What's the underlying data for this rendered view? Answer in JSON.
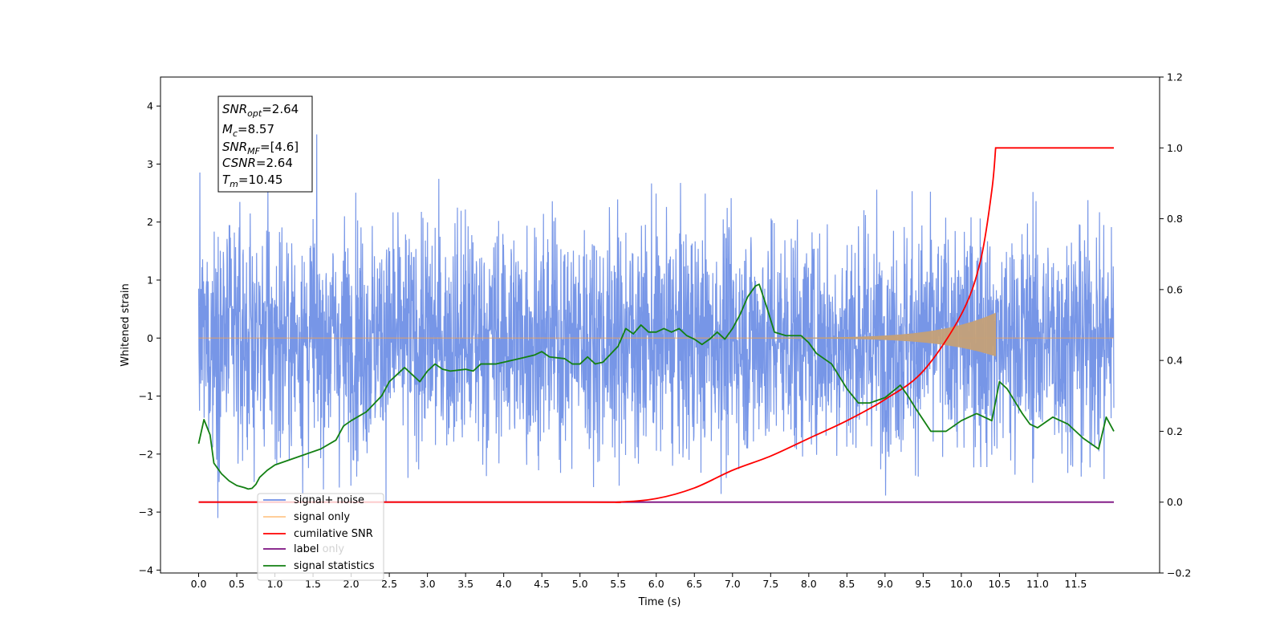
{
  "chart_data": {
    "type": "line",
    "xlabel": "Time (s)",
    "ylabel": "Whitened strain",
    "xlim": [
      -0.5,
      12.6
    ],
    "ylim": [
      -4.05,
      4.5
    ],
    "ylim_right": [
      -0.2,
      1.2
    ],
    "x_ticks": [
      "0.0",
      "0.5",
      "1.0",
      "1.5",
      "2.0",
      "2.5",
      "3.0",
      "3.5",
      "4.0",
      "4.5",
      "5.0",
      "5.5",
      "6.0",
      "6.5",
      "7.0",
      "7.5",
      "8.0",
      "8.5",
      "9.0",
      "9.5",
      "10.0",
      "10.5",
      "11.0",
      "11.5"
    ],
    "y_ticks": [
      "4",
      "3",
      "2",
      "1",
      "0",
      "−1",
      "−2",
      "−3",
      "−4"
    ],
    "y_ticks_right": [
      "1.2",
      "1.0",
      "0.8",
      "0.6",
      "0.4",
      "0.2",
      "0.0",
      "−0.2"
    ],
    "grid": false,
    "legend_position": "lower-left",
    "annotation": {
      "snr_opt_base": "SNR",
      "snr_opt_sub": "opt",
      "snr_opt_value": "=2.64",
      "mc_base": "M",
      "mc_sub": "c",
      "mc_value": "=8.57",
      "snr_mf_base": "SNR",
      "snr_mf_sub": "MF",
      "snr_mf_value": "=[4.6]",
      "csnr_base": "CSNR",
      "csnr_value": "=2.64",
      "tm_base": "T",
      "tm_sub": "m",
      "tm_value": "=10.45"
    },
    "series": [
      {
        "name": "signal+ noise",
        "color": "#7090e6",
        "axis": "left",
        "x_range": [
          0.0,
          12.0
        ],
        "y_range_observed": [
          -3.7,
          4.0
        ],
        "noise_std": 1.0
      },
      {
        "name": "signal only",
        "color": "#ffa040",
        "chirp_color": "#c4a078",
        "axis": "left",
        "x_range": [
          0.0,
          12.0
        ],
        "chirp_start": 7.5,
        "chirp_end": 10.45,
        "chirp_peak_amplitude": 0.35
      },
      {
        "name": "cumilative SNR",
        "color": "#ff0000",
        "axis": "right",
        "points": [
          [
            0.0,
            0.0
          ],
          [
            5.0,
            0.0
          ],
          [
            5.5,
            0.0
          ],
          [
            6.0,
            0.01
          ],
          [
            6.5,
            0.04
          ],
          [
            7.0,
            0.09
          ],
          [
            7.5,
            0.13
          ],
          [
            8.0,
            0.18
          ],
          [
            8.5,
            0.23
          ],
          [
            9.0,
            0.29
          ],
          [
            9.5,
            0.37
          ],
          [
            10.0,
            0.53
          ],
          [
            10.25,
            0.68
          ],
          [
            10.4,
            0.88
          ],
          [
            10.45,
            1.0
          ],
          [
            12.0,
            1.0
          ]
        ]
      },
      {
        "name": "label",
        "color": "#7b0f80",
        "axis": "right",
        "points": [
          [
            0.0,
            0.0
          ],
          [
            12.0,
            0.0
          ]
        ]
      },
      {
        "name": "label only",
        "color": "#7b0f80",
        "axis": "right",
        "points": []
      },
      {
        "name": "signal statistics",
        "color": "#138013",
        "axis": "right",
        "points": [
          [
            0.0,
            0.165
          ],
          [
            0.07,
            0.233
          ],
          [
            0.15,
            0.19
          ],
          [
            0.2,
            0.11
          ],
          [
            0.3,
            0.08
          ],
          [
            0.4,
            0.06
          ],
          [
            0.5,
            0.047
          ],
          [
            0.6,
            0.041
          ],
          [
            0.65,
            0.037
          ],
          [
            0.7,
            0.039
          ],
          [
            0.75,
            0.05
          ],
          [
            0.8,
            0.07
          ],
          [
            0.9,
            0.09
          ],
          [
            1.0,
            0.105
          ],
          [
            1.2,
            0.12
          ],
          [
            1.4,
            0.135
          ],
          [
            1.6,
            0.15
          ],
          [
            1.8,
            0.175
          ],
          [
            1.9,
            0.215
          ],
          [
            2.0,
            0.23
          ],
          [
            2.2,
            0.255
          ],
          [
            2.4,
            0.3
          ],
          [
            2.5,
            0.34
          ],
          [
            2.6,
            0.36
          ],
          [
            2.7,
            0.38
          ],
          [
            2.8,
            0.36
          ],
          [
            2.9,
            0.34
          ],
          [
            3.0,
            0.37
          ],
          [
            3.1,
            0.39
          ],
          [
            3.2,
            0.375
          ],
          [
            3.3,
            0.37
          ],
          [
            3.5,
            0.375
          ],
          [
            3.6,
            0.37
          ],
          [
            3.7,
            0.39
          ],
          [
            3.9,
            0.39
          ],
          [
            4.0,
            0.395
          ],
          [
            4.2,
            0.405
          ],
          [
            4.4,
            0.415
          ],
          [
            4.5,
            0.425
          ],
          [
            4.6,
            0.41
          ],
          [
            4.8,
            0.405
          ],
          [
            4.9,
            0.39
          ],
          [
            5.0,
            0.39
          ],
          [
            5.1,
            0.41
          ],
          [
            5.2,
            0.39
          ],
          [
            5.3,
            0.395
          ],
          [
            5.5,
            0.44
          ],
          [
            5.6,
            0.49
          ],
          [
            5.7,
            0.475
          ],
          [
            5.8,
            0.5
          ],
          [
            5.9,
            0.48
          ],
          [
            6.0,
            0.48
          ],
          [
            6.1,
            0.49
          ],
          [
            6.2,
            0.48
          ],
          [
            6.3,
            0.49
          ],
          [
            6.4,
            0.47
          ],
          [
            6.5,
            0.46
          ],
          [
            6.6,
            0.445
          ],
          [
            6.7,
            0.46
          ],
          [
            6.8,
            0.48
          ],
          [
            6.9,
            0.46
          ],
          [
            7.0,
            0.49
          ],
          [
            7.1,
            0.53
          ],
          [
            7.2,
            0.58
          ],
          [
            7.3,
            0.61
          ],
          [
            7.35,
            0.615
          ],
          [
            7.45,
            0.55
          ],
          [
            7.55,
            0.48
          ],
          [
            7.7,
            0.47
          ],
          [
            7.9,
            0.47
          ],
          [
            8.0,
            0.45
          ],
          [
            8.1,
            0.42
          ],
          [
            8.3,
            0.39
          ],
          [
            8.5,
            0.32
          ],
          [
            8.65,
            0.28
          ],
          [
            8.8,
            0.28
          ],
          [
            9.0,
            0.295
          ],
          [
            9.2,
            0.33
          ],
          [
            9.3,
            0.3
          ],
          [
            9.4,
            0.265
          ],
          [
            9.6,
            0.2
          ],
          [
            9.8,
            0.2
          ],
          [
            10.0,
            0.23
          ],
          [
            10.2,
            0.25
          ],
          [
            10.4,
            0.23
          ],
          [
            10.5,
            0.34
          ],
          [
            10.6,
            0.32
          ],
          [
            10.8,
            0.25
          ],
          [
            10.9,
            0.22
          ],
          [
            11.0,
            0.21
          ],
          [
            11.2,
            0.24
          ],
          [
            11.4,
            0.22
          ],
          [
            11.6,
            0.18
          ],
          [
            11.8,
            0.15
          ],
          [
            11.9,
            0.24
          ],
          [
            12.0,
            0.2
          ]
        ]
      }
    ]
  }
}
